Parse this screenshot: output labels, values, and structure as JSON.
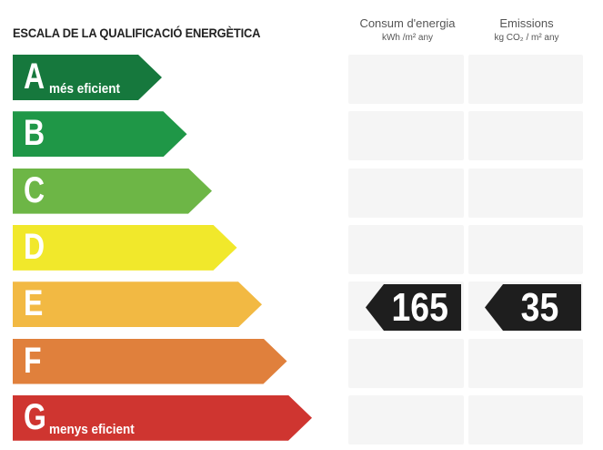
{
  "title": "ESCALA DE LA QUALIFICACIÓ ENERGÈTICA",
  "columns": [
    {
      "header": "Consum d'energia",
      "unit": "kWh /m² any"
    },
    {
      "header": "Emissions",
      "unit": "kg CO₂ / m² any"
    }
  ],
  "ratings": [
    {
      "letter": "A",
      "label": "més eficient",
      "color": "#16783d"
    },
    {
      "letter": "B",
      "label": "",
      "color": "#1f9747"
    },
    {
      "letter": "C",
      "label": "",
      "color": "#6db646"
    },
    {
      "letter": "D",
      "label": "",
      "color": "#f1e82b"
    },
    {
      "letter": "E",
      "label": "",
      "color": "#f2b943"
    },
    {
      "letter": "F",
      "label": "",
      "color": "#e0803c"
    },
    {
      "letter": "G",
      "label": "menys eficient",
      "color": "#cf3530"
    }
  ],
  "result": {
    "rating": "E",
    "energy_consumption": "165",
    "emissions": "35"
  }
}
